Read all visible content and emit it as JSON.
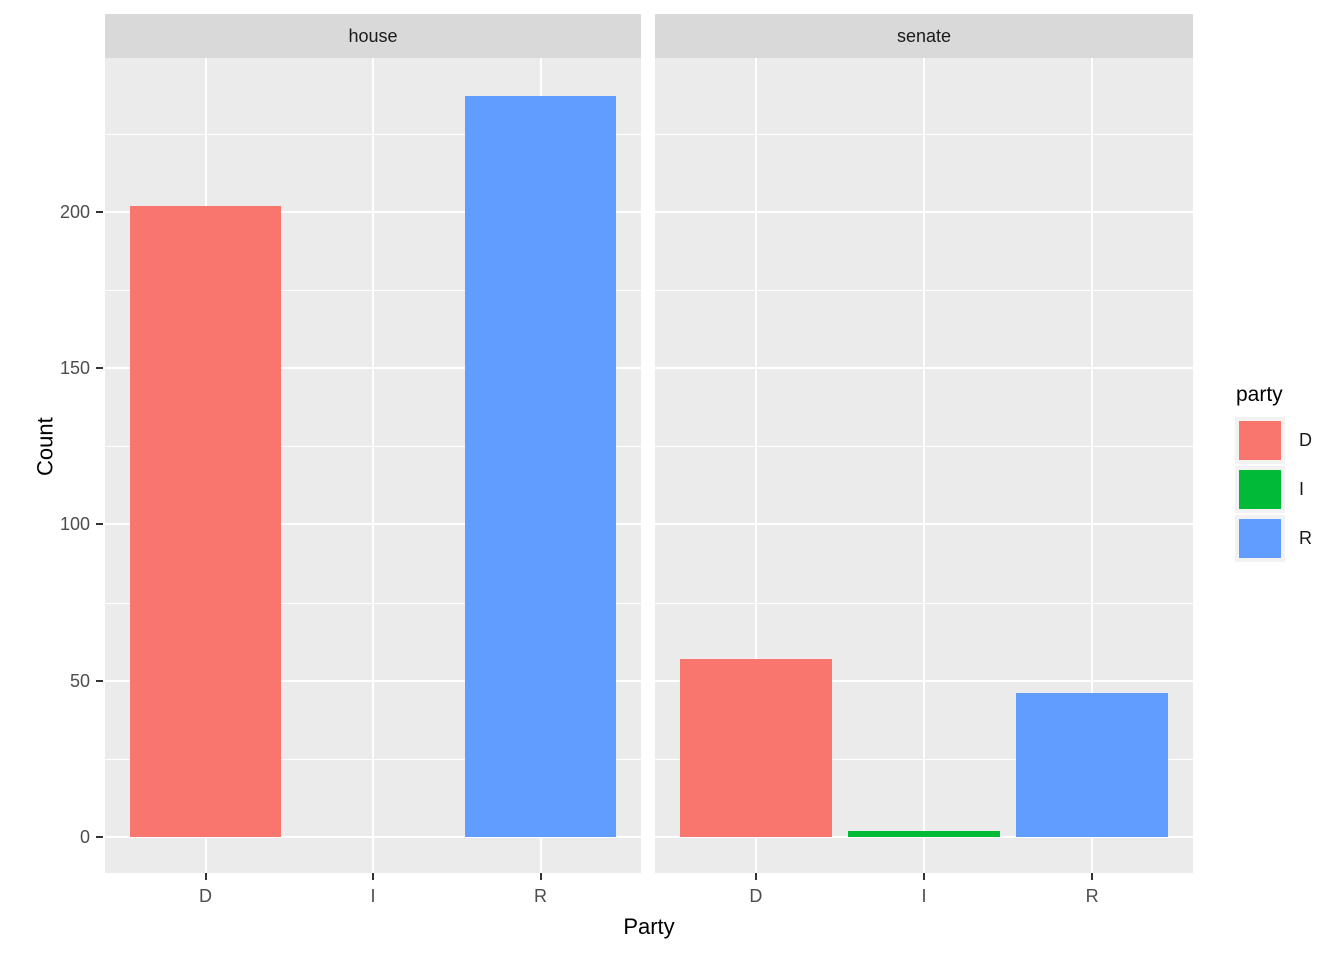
{
  "figure": {
    "background": "#FFFFFF",
    "panel_bg": "#EBEBEB",
    "strip_bg": "#D9D9D9",
    "grid_color": "#FFFFFF",
    "tick_mark_color": "#333333",
    "tick_label_color": "#4D4D4D",
    "axis_title_color": "#000000"
  },
  "chart_data": {
    "type": "bar",
    "faceted": true,
    "facets": [
      {
        "label": "house",
        "categories": [
          "D",
          "I",
          "R"
        ],
        "values": [
          202,
          0,
          237
        ]
      },
      {
        "label": "senate",
        "categories": [
          "D",
          "I",
          "R"
        ],
        "values": [
          57,
          2,
          46
        ]
      }
    ],
    "title": "",
    "xlabel": "Party",
    "ylabel": "Count",
    "y_ticks": [
      0,
      50,
      100,
      150,
      200
    ],
    "y_minor_ticks": [
      25,
      75,
      125,
      175,
      225
    ],
    "ylim": [
      -11.85,
      248.85
    ],
    "grid": true,
    "legend_position": "right",
    "legend": {
      "title": "party",
      "entries": [
        {
          "label": "D",
          "color": "#F8766D"
        },
        {
          "label": "I",
          "color": "#00BA38"
        },
        {
          "label": "R",
          "color": "#619CFF"
        }
      ]
    },
    "series_colors": {
      "D": "#F8766D",
      "I": "#00BA38",
      "R": "#619CFF"
    }
  }
}
